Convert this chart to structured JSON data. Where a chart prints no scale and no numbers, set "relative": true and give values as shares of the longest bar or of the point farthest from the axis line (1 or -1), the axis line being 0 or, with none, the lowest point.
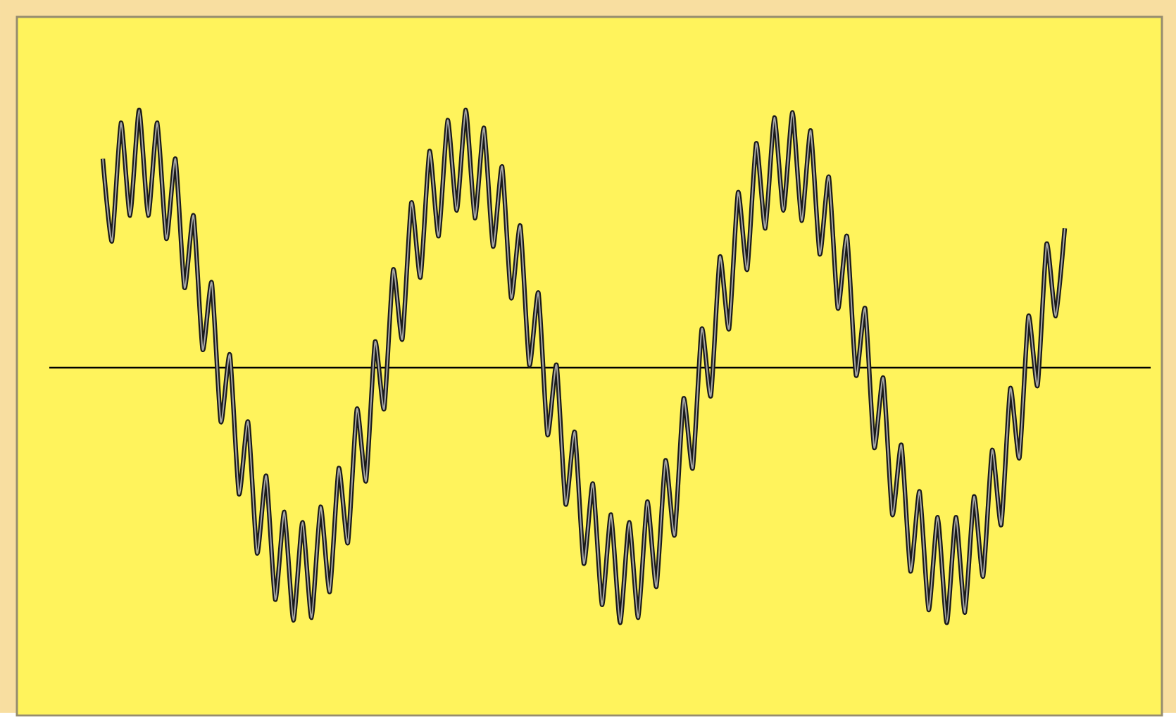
{
  "chart_data": {
    "type": "line",
    "relative": true,
    "categories": [
      null,
      null,
      null,
      null,
      null,
      null,
      null,
      null,
      null,
      null,
      null,
      null,
      null,
      null,
      null,
      null,
      null,
      null,
      null,
      null,
      null,
      null,
      null,
      null,
      null,
      null,
      null,
      null,
      null,
      null,
      null,
      null,
      null,
      null,
      null,
      null,
      null,
      null,
      null,
      null,
      null,
      null,
      null,
      null,
      null,
      null,
      null,
      null,
      null,
      null,
      null,
      null,
      null,
      null,
      null,
      null,
      null,
      null,
      null,
      null,
      null,
      null,
      null,
      null,
      null,
      null,
      null,
      null,
      null,
      null,
      null,
      null,
      null,
      null,
      null,
      null,
      null,
      null,
      null,
      null,
      null,
      null,
      null,
      null,
      null,
      null,
      null,
      null,
      null,
      null,
      null,
      null,
      null,
      null,
      null,
      null,
      null,
      null,
      null,
      null,
      null,
      null,
      null,
      null,
      null,
      null,
      null
    ],
    "series": [
      {
        "color": "#1a1a1a",
        "values": [
          0.81,
          0.49,
          0.95,
          0.59,
          1.0,
          0.59,
          0.95,
          0.5,
          0.81,
          0.31,
          0.59,
          0.07,
          0.33,
          -0.21,
          0.05,
          -0.49,
          -0.21,
          -0.72,
          -0.42,
          -0.9,
          -0.56,
          -0.98,
          -0.6,
          -0.97,
          -0.54,
          -0.87,
          -0.39,
          -0.68,
          -0.16,
          -0.44,
          0.1,
          -0.16,
          0.38,
          0.11,
          0.64,
          0.35,
          0.84,
          0.51,
          0.96,
          0.61,
          1.0,
          0.58,
          0.93,
          0.47,
          0.78,
          0.27,
          0.55,
          0.01,
          0.29,
          -0.26,
          0.01,
          -0.53,
          -0.25,
          -0.76,
          -0.45,
          -0.92,
          -0.57,
          -0.99,
          -0.6,
          -0.97,
          -0.52,
          -0.85,
          -0.36,
          -0.65,
          -0.12,
          -0.39,
          0.15,
          -0.11,
          0.43,
          0.15,
          0.68,
          0.38,
          0.87,
          0.54,
          0.97,
          0.61,
          0.99,
          0.57,
          0.92,
          0.44,
          0.74,
          0.23,
          0.51,
          -0.03,
          0.23,
          -0.31,
          -0.04,
          -0.57,
          -0.3,
          -0.79,
          -0.48,
          -0.94,
          -0.58,
          -0.99,
          -0.58,
          -0.95,
          -0.5,
          -0.81,
          -0.32,
          -0.61,
          -0.08,
          -0.35,
          0.2,
          -0.07,
          0.48,
          0.2,
          0.54
        ]
      }
    ]
  }
}
